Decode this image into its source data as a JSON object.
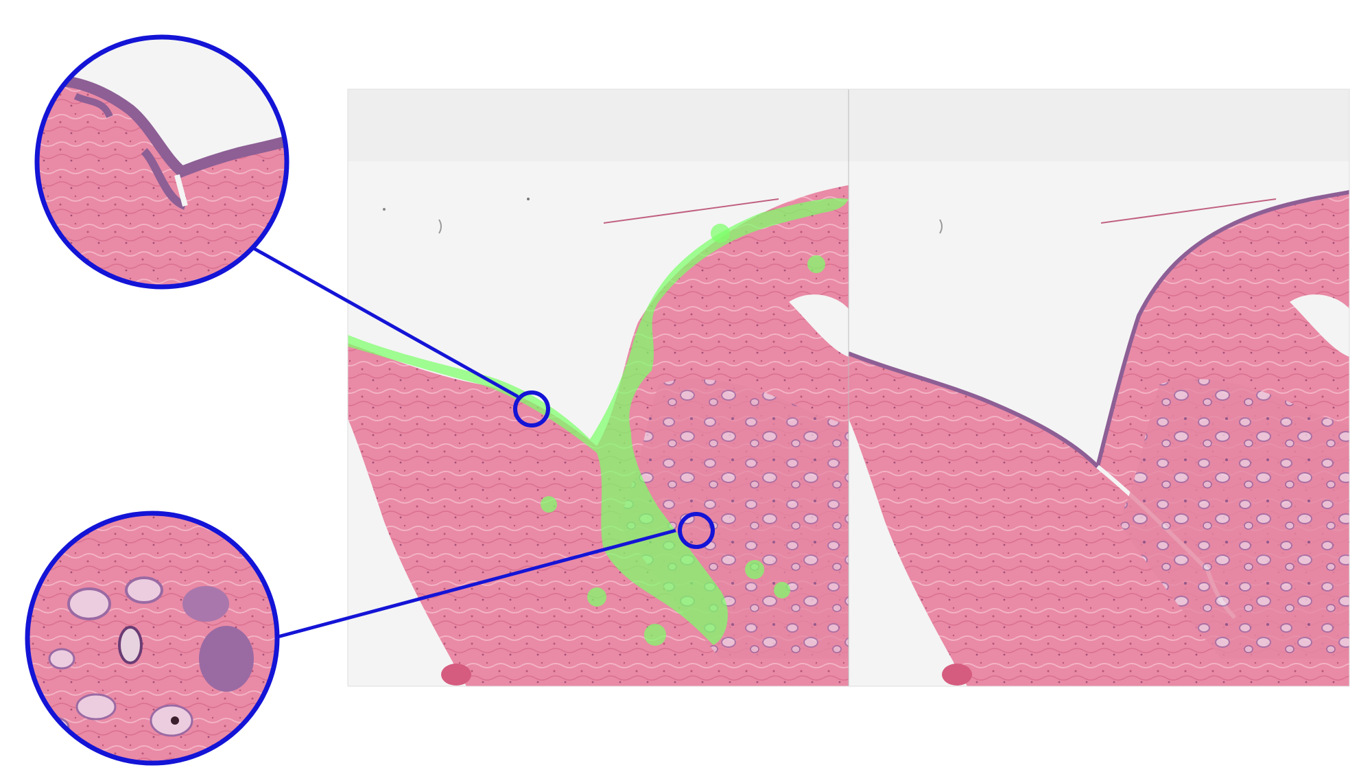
{
  "figure": {
    "panels": [
      {
        "id": "left-panel",
        "overlay": "green-segmentation-overlay",
        "overlay_color": "#7dff6a"
      },
      {
        "id": "right-panel",
        "overlay": "none"
      }
    ],
    "callouts": [
      {
        "id": "top-zoom",
        "region": "surface-epithelium"
      },
      {
        "id": "bottom-zoom",
        "region": "glandular-stroma"
      }
    ]
  },
  "colors": {
    "callout_stroke": "#1414d6",
    "tissue_pink": "#e8809f",
    "tissue_purple": "#9a6aa3",
    "background_slide": "#f4f4f4",
    "overlay_green": "#7dff6a"
  }
}
